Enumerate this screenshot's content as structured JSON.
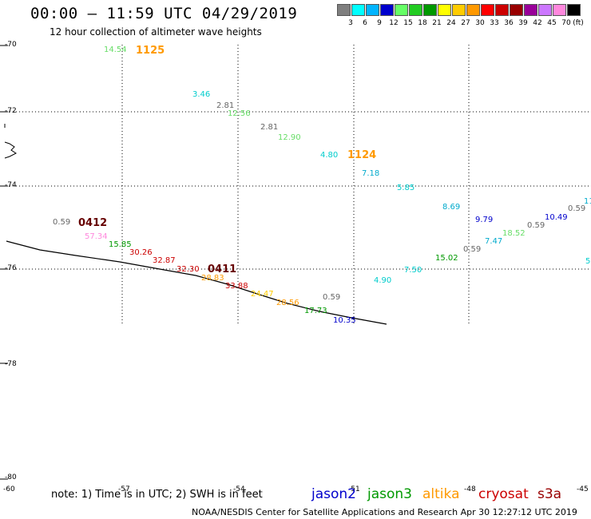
{
  "header": {
    "title": "00:00 – 11:59 UTC 04/29/2019",
    "subtitle": "12 hour collection of altimeter wave heights"
  },
  "color_scale": {
    "unit": "(ft)",
    "bins": [
      {
        "label": "3",
        "color": "#7f7f7f"
      },
      {
        "label": "6",
        "color": "#00ffff"
      },
      {
        "label": "9",
        "color": "#00b4ff"
      },
      {
        "label": "12",
        "color": "#0000cd"
      },
      {
        "label": "15",
        "color": "#66ff66"
      },
      {
        "label": "18",
        "color": "#22cc22"
      },
      {
        "label": "21",
        "color": "#009900"
      },
      {
        "label": "24",
        "color": "#ffff00"
      },
      {
        "label": "27",
        "color": "#ffcc00"
      },
      {
        "label": "30",
        "color": "#ff9900"
      },
      {
        "label": "33",
        "color": "#ff0000"
      },
      {
        "label": "36",
        "color": "#cc0000"
      },
      {
        "label": "39",
        "color": "#990000"
      },
      {
        "label": "42",
        "color": "#990099"
      },
      {
        "label": "45",
        "color": "#cc77ff"
      },
      {
        "label": "70",
        "color": "#ff88dd"
      },
      {
        "label": "",
        "color": "#000000"
      }
    ]
  },
  "latitudes": [
    "-70",
    "-72",
    "-74",
    "-76",
    "-78",
    "-80"
  ],
  "longitudes": [
    "-60",
    "-57",
    "-54",
    "-51",
    "-48",
    "-45"
  ],
  "wave_heights": [
    {
      "text": "14.54",
      "color": "#66dd66"
    },
    {
      "text": "3.46",
      "color": "#00cccc"
    },
    {
      "text": "2.81",
      "color": "#666666"
    },
    {
      "text": "12.56",
      "color": "#66dd66"
    },
    {
      "text": "2.81",
      "color": "#666666"
    },
    {
      "text": "12.90",
      "color": "#66dd66"
    },
    {
      "text": "4.80",
      "color": "#00cccc"
    },
    {
      "text": "7.18",
      "color": "#00aacc"
    },
    {
      "text": "5.85",
      "color": "#00cccc"
    },
    {
      "text": "8.69",
      "color": "#00aacc"
    },
    {
      "text": "9.79",
      "color": "#0000cc"
    },
    {
      "text": "10.49",
      "color": "#0000cc"
    },
    {
      "text": "0.59",
      "color": "#666666"
    },
    {
      "text": "0.59",
      "color": "#666666"
    },
    {
      "text": "11",
      "color": "#00aacc"
    },
    {
      "text": "18.52",
      "color": "#66dd66"
    },
    {
      "text": "7.47",
      "color": "#00aacc"
    },
    {
      "text": "0.59",
      "color": "#666666"
    },
    {
      "text": "15.02",
      "color": "#009900"
    },
    {
      "text": "7.50",
      "color": "#00cccc"
    },
    {
      "text": "4.90",
      "color": "#00cccc"
    },
    {
      "text": "5",
      "color": "#00cccc"
    },
    {
      "text": "0.59",
      "color": "#666666"
    },
    {
      "text": "57.34",
      "color": "#ff88dd"
    },
    {
      "text": "15.85",
      "color": "#009900"
    },
    {
      "text": "30.26",
      "color": "#cc0000"
    },
    {
      "text": "32.87",
      "color": "#cc0000"
    },
    {
      "text": "32.30",
      "color": "#cc0000"
    },
    {
      "text": "28.83",
      "color": "#ff9900"
    },
    {
      "text": "33.88",
      "color": "#cc0000"
    },
    {
      "text": "24.47",
      "color": "#ffcc00"
    },
    {
      "text": "28.56",
      "color": "#ff9900"
    },
    {
      "text": "0.59",
      "color": "#666666"
    },
    {
      "text": "17.73",
      "color": "#009900"
    },
    {
      "text": "10.35",
      "color": "#0000cc"
    }
  ],
  "pass_ids": [
    {
      "text": "1125",
      "color": "#ff9900"
    },
    {
      "text": "1124",
      "color": "#ff9900"
    },
    {
      "text": "0412",
      "color": "#660000"
    },
    {
      "text": "0411",
      "color": "#660000"
    }
  ],
  "footer": {
    "note": "note: 1) Time is in UTC; 2) SWH is in feet",
    "satellites": [
      {
        "name": "jason2",
        "color": "#0000cc"
      },
      {
        "name": "jason3",
        "color": "#009900"
      },
      {
        "name": "altika",
        "color": "#ff9900"
      },
      {
        "name": "cryosat",
        "color": "#cc0000"
      },
      {
        "name": "s3a",
        "color": "#990000"
      }
    ],
    "credit": "NOAA/NESDIS Center for Satellite Applications and Research   Apr 30 12:27:12 UTC 2019"
  }
}
